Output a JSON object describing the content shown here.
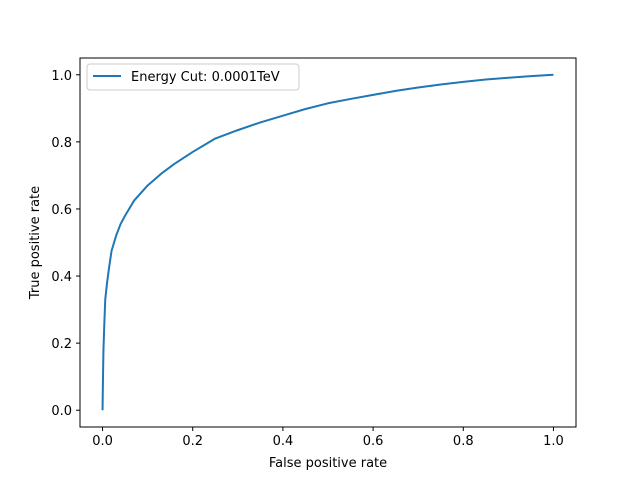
{
  "chart_data": {
    "type": "line",
    "title": "",
    "xlabel": "False positive rate",
    "ylabel": "True positive rate",
    "xlim": [
      -0.05,
      1.05
    ],
    "ylim": [
      -0.05,
      1.05
    ],
    "xticks": [
      "0.0",
      "0.2",
      "0.4",
      "0.6",
      "0.8",
      "1.0"
    ],
    "yticks": [
      "0.0",
      "0.2",
      "0.4",
      "0.6",
      "0.8",
      "1.0"
    ],
    "grid": false,
    "legend": "upper-left",
    "series": [
      {
        "name": "Energy Cut: 0.0001TeV",
        "color": "#1f77b4",
        "x": [
          0.0,
          0.001,
          0.002,
          0.004,
          0.006,
          0.01,
          0.015,
          0.02,
          0.03,
          0.04,
          0.05,
          0.07,
          0.1,
          0.13,
          0.16,
          0.2,
          0.25,
          0.3,
          0.35,
          0.4,
          0.45,
          0.5,
          0.55,
          0.6,
          0.65,
          0.7,
          0.75,
          0.8,
          0.85,
          0.9,
          0.95,
          1.0
        ],
        "y": [
          0.0,
          0.1,
          0.18,
          0.26,
          0.33,
          0.38,
          0.43,
          0.475,
          0.52,
          0.555,
          0.58,
          0.625,
          0.67,
          0.705,
          0.735,
          0.77,
          0.81,
          0.835,
          0.858,
          0.878,
          0.898,
          0.915,
          0.928,
          0.94,
          0.952,
          0.962,
          0.971,
          0.979,
          0.986,
          0.991,
          0.996,
          1.0
        ]
      }
    ]
  }
}
